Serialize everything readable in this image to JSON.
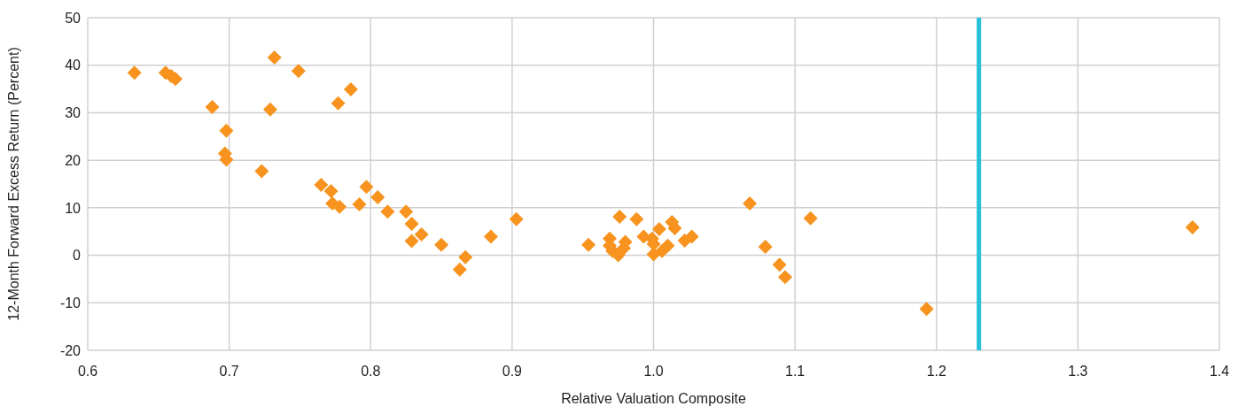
{
  "chart_data": {
    "type": "scatter",
    "xlabel": "Relative Valuation Composite",
    "ylabel": "12-Month Forward Excess Return (Percent)",
    "x": [
      0.633,
      0.655,
      0.659,
      0.662,
      0.688,
      0.698,
      0.697,
      0.698,
      0.723,
      0.732,
      0.729,
      0.749,
      0.777,
      0.786,
      0.765,
      0.772,
      0.773,
      0.778,
      0.792,
      0.797,
      0.805,
      0.812,
      0.825,
      0.829,
      0.829,
      0.836,
      0.85,
      0.863,
      0.867,
      0.885,
      0.903,
      0.954,
      0.969,
      0.969,
      0.971,
      0.975,
      0.976,
      0.979,
      0.98,
      0.988,
      0.993,
      0.999,
      1.0,
      1.0,
      1.004,
      1.006,
      1.01,
      1.013,
      1.015,
      1.022,
      1.027,
      1.068,
      1.079,
      1.089,
      1.093,
      1.111,
      1.193,
      1.381
    ],
    "series": [
      {
        "color": "#f7931e",
        "values": [
          38.4,
          38.4,
          37.7,
          37.1,
          31.2,
          26.2,
          21.4,
          20.1,
          17.7,
          41.6,
          30.7,
          38.8,
          32.0,
          34.9,
          14.8,
          13.5,
          10.9,
          10.2,
          10.7,
          14.4,
          12.2,
          9.2,
          9.2,
          6.6,
          3.0,
          4.4,
          2.2,
          -3.0,
          -0.4,
          3.9,
          7.6,
          2.2,
          3.5,
          2.0,
          0.9,
          0,
          8.1,
          1.5,
          2.8,
          7.6,
          3.9,
          3.5,
          2.4,
          0.2,
          5.5,
          0.9,
          2.0,
          7.0,
          5.7,
          3.1,
          3.9,
          10.9,
          1.8,
          -2.0,
          -4.6,
          7.8,
          -11.3,
          5.9
        ]
      }
    ],
    "marker": "diamond",
    "grid": true,
    "xlim": [
      0.6,
      1.4
    ],
    "xticks": [
      0.6,
      0.7,
      0.8,
      0.9,
      {
        "value": 1,
        "label": "1.0"
      },
      1.1,
      1.2,
      1.3,
      1.4
    ],
    "ylim": [
      -20,
      50
    ],
    "yticks": [
      -20,
      -10,
      0,
      10,
      20,
      30,
      40,
      50
    ],
    "ref_lines": [
      {
        "axis": "x",
        "value": 1.23,
        "color": "#29c0d9"
      }
    ]
  }
}
